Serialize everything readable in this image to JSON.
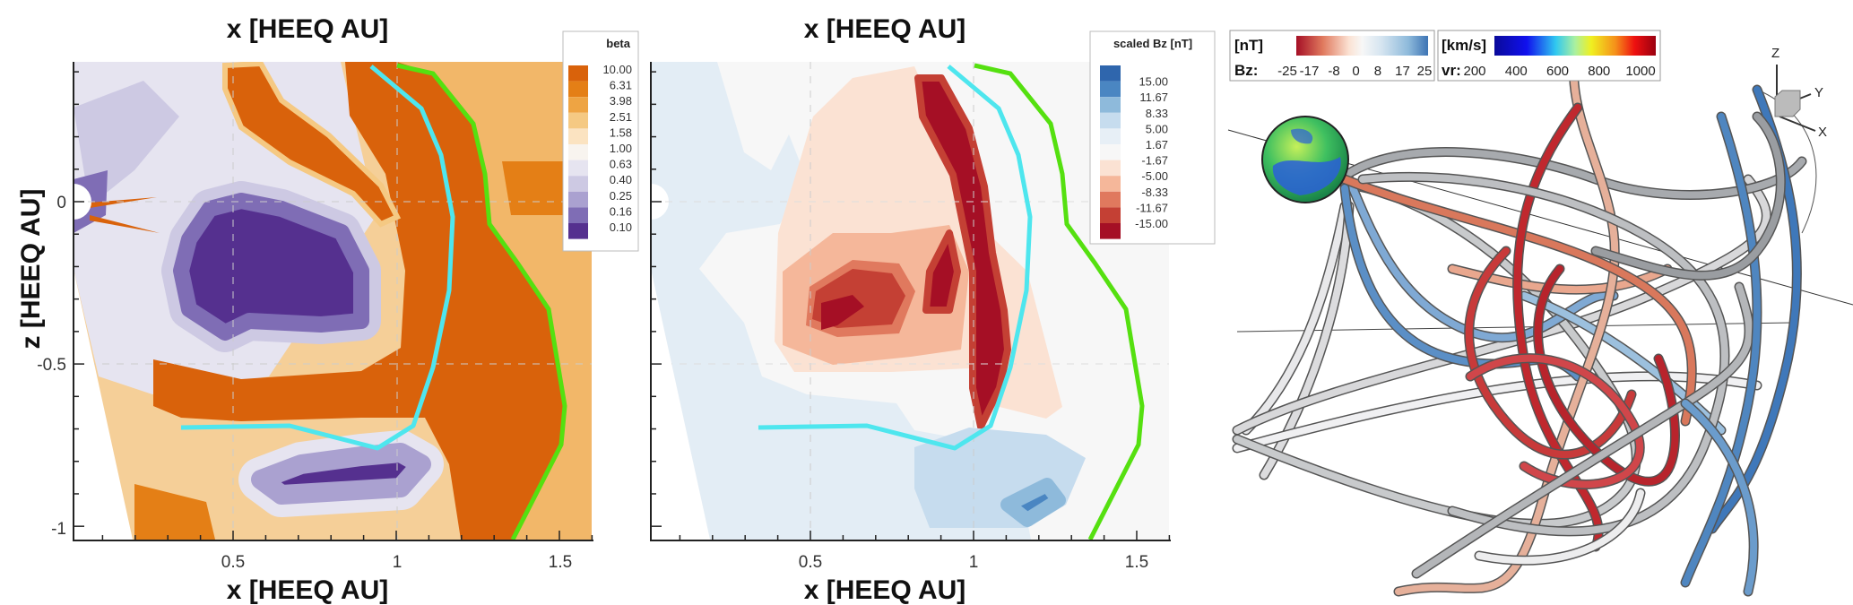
{
  "chart_data": [
    {
      "type": "heatmap",
      "title": "x [HEEQ AU]",
      "xlabel": "x [HEEQ AU]",
      "ylabel": "z [HEEQ AU]",
      "xticks": [
        "0.5",
        "1",
        "1.5"
      ],
      "yticks": [
        "0",
        "-0.5",
        "-1"
      ],
      "xlim": [
        0,
        1.6
      ],
      "ylim": [
        -1.04,
        0.43
      ],
      "legend": {
        "title": "beta",
        "position": "top-right",
        "levels": [
          "10.00",
          "6.31",
          "3.98",
          "2.51",
          "1.58",
          "1.00",
          "0.63",
          "0.40",
          "0.25",
          "0.16",
          "0.10"
        ],
        "colors": [
          "#d9620b",
          "#e47f16",
          "#eea443",
          "#f5c983",
          "#fbe3c1",
          "#f8f4ef",
          "#e6e4f0",
          "#cdc9e3",
          "#aaa1d0",
          "#7f6db5",
          "#55308f"
        ]
      }
    },
    {
      "type": "heatmap",
      "title": "x [HEEQ AU]",
      "xlabel": "x [HEEQ AU]",
      "xticks": [
        "0.5",
        "1",
        "1.5"
      ],
      "xlim": [
        0,
        1.6
      ],
      "ylim": [
        -1.04,
        0.43
      ],
      "legend": {
        "title": "scaled Bz [nT]",
        "position": "top-right",
        "levels": [
          "15.00",
          "11.67",
          "8.33",
          "5.00",
          "1.67",
          "-1.67",
          "-5.00",
          "-8.33",
          "-11.67",
          "-15.00"
        ],
        "colors": [
          "#2f66ad",
          "#4a86c2",
          "#8ebadb",
          "#c6dcee",
          "#e7eff6",
          "#f7f7f7",
          "#fbe2d3",
          "#f5b79a",
          "#e0795e",
          "#c44034",
          "#a50f25"
        ]
      }
    },
    {
      "type": "other",
      "description_colorbars": [
        {
          "unit": "[nT]",
          "var": "Bz:",
          "ticks": [
            "-25",
            "-17",
            "-8",
            "0",
            "8",
            "17",
            "25"
          ],
          "range": [
            -25,
            25
          ]
        },
        {
          "unit": "[km/s]",
          "var": "vr:",
          "ticks": [
            "200",
            "400",
            "600",
            "800",
            "1000"
          ],
          "range": [
            200,
            1000
          ]
        }
      ],
      "axes_triad": [
        "Z",
        "Y",
        "X"
      ]
    }
  ],
  "colors": {
    "green_line": "#55e010",
    "cyan_line": "#4ee6ee"
  }
}
